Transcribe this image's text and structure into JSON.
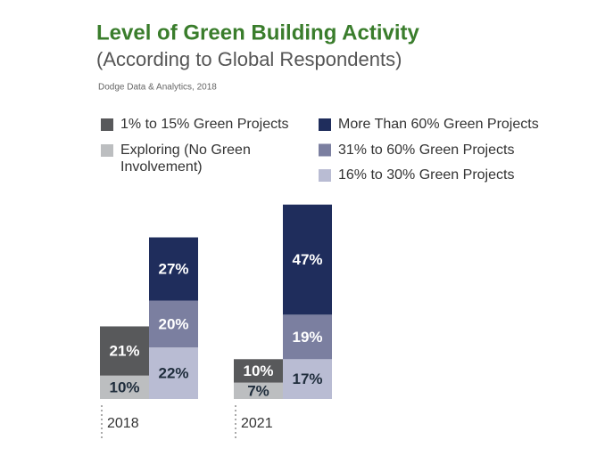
{
  "chart_data": {
    "type": "stacked_bar",
    "title": "Level of Green Building Activity",
    "subtitle": "(According to Global Respondents)",
    "source": "Dodge Data & Analytics, 2018",
    "categories": [
      "2018",
      "2021"
    ],
    "series": [
      {
        "name": "Exploring (No Green Involvement)",
        "color": "#bcbec0",
        "stack": 0,
        "values": [
          10,
          7
        ],
        "value_labels": [
          "10%",
          "7%"
        ]
      },
      {
        "name": "1% to 15% Green Projects",
        "color": "#58595b",
        "stack": 0,
        "values": [
          21,
          10
        ],
        "value_labels": [
          "21%",
          "10%"
        ]
      },
      {
        "name": "16% to 30% Green Projects",
        "color": "#b9bcd3",
        "stack": 1,
        "values": [
          22,
          17
        ],
        "value_labels": [
          "22%",
          "17%"
        ]
      },
      {
        "name": "31% to 60% Green Projects",
        "color": "#7b7fa0",
        "stack": 1,
        "values": [
          20,
          19
        ],
        "value_labels": [
          "20%",
          "19%"
        ]
      },
      {
        "name": "More Than 60% Green Projects",
        "color": "#1f2d5c",
        "stack": 1,
        "values": [
          27,
          47
        ],
        "value_labels": [
          "27%",
          "47%"
        ]
      }
    ]
  }
}
